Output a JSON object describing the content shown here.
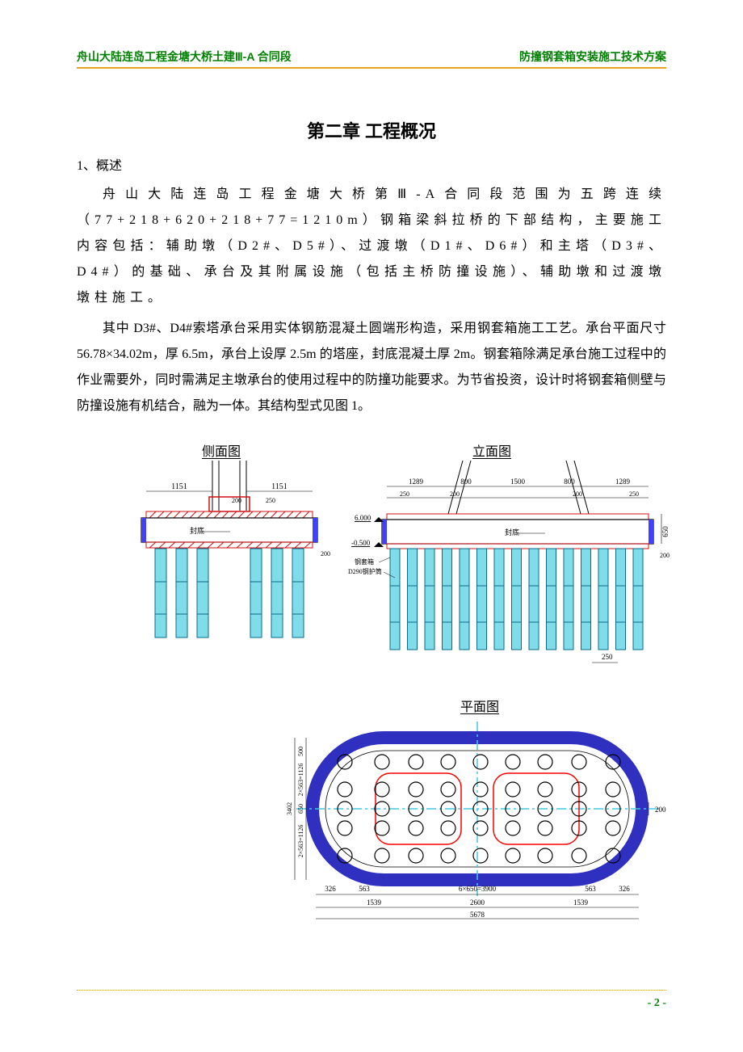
{
  "header": {
    "left": "舟山大陆连岛工程金塘大桥土建Ⅲ-A 合同段",
    "right": "防撞钢套箱安装施工技术方案",
    "rule_color": "#e9a31d",
    "text_color": "#008000"
  },
  "chapter_title": "第二章  工程概况",
  "section_label": "1、概述",
  "paragraphs": [
    "舟山大陆连岛工程金塘大桥第Ⅲ-A合同段范围为五跨连续（77+218+620+218+77=1210m）钢箱梁斜拉桥的下部结构，主要施工内容包括：辅助墩（D2#、D5#）、过渡墩（D1#、D6#）和主塔（D3#、D4#）的基础、承台及其附属设施（包括主桥防撞设施）、辅助墩和过渡墩墩柱施工。",
    "其中 D3#、D4#索塔承台采用实体钢筋混凝土圆端形构造，采用钢套箱施工工艺。承台平面尺寸 56.78×34.02m，厚 6.5m，承台上设厚 2.5m 的塔座，封底混凝土厚 2m。钢套箱除满足承台施工过程中的作业需要外，同时需满足主墩承台的使用过程中的防撞功能要求。为节省投资，设计时将钢套箱侧壁与防撞设施有机结合，融为一体。其结构型式见图 1。"
  ],
  "figure": {
    "titles": {
      "side": "侧面图",
      "elev": "立面图",
      "plan": "平面图"
    },
    "colors": {
      "pile_fill": "#7fdce8",
      "pile_stroke": "#0a6b8c",
      "cap_fill": "#ffffff",
      "cap_stroke": "#000000",
      "hatch": "#d01010",
      "dim_text": "#000000",
      "ring_fill": "#4040ff",
      "ring_hatch": "#3030c0",
      "tower_red": "#ff0000",
      "center_cyan": "#40c8e0"
    },
    "side": {
      "dims_top": [
        "1151",
        "1151"
      ],
      "dims_small": [
        "200",
        "250"
      ],
      "dim_bottom_right": "200",
      "label_fd": "封底",
      "pile_groups": [
        [
          0,
          1,
          2
        ],
        [
          3,
          4,
          5
        ]
      ]
    },
    "elev": {
      "dims_top": [
        "1289",
        "800",
        "1500",
        "800",
        "1289"
      ],
      "dims_small_top": [
        "250",
        "200",
        "200",
        "250"
      ],
      "elev_marks": [
        "6.000",
        "-0.500"
      ],
      "dim_right": "650",
      "dim_br": "200",
      "dim_bottom": "250",
      "label_fd": "封底",
      "labels_left": [
        "钢套箱",
        "D290钢护筒"
      ],
      "pile_count": 15
    },
    "plan": {
      "outer_w": 5678,
      "outer_h": 3402,
      "dims_bottom": [
        "326",
        "563",
        "6×650=3900",
        "563",
        "326"
      ],
      "dims_bottom2": [
        "1539",
        "2600",
        "1539"
      ],
      "dims_bottom3": "5678",
      "dims_left_seq": [
        "500",
        "2×563=1126",
        "650",
        "2×563=1126"
      ],
      "dims_left_total": "3402",
      "dim_right": "200",
      "pile_rows": 5,
      "pile_cols": 8
    }
  },
  "footer": {
    "page": "- 2 -",
    "rule_color": "#e9a31d",
    "text_color": "#008000"
  }
}
